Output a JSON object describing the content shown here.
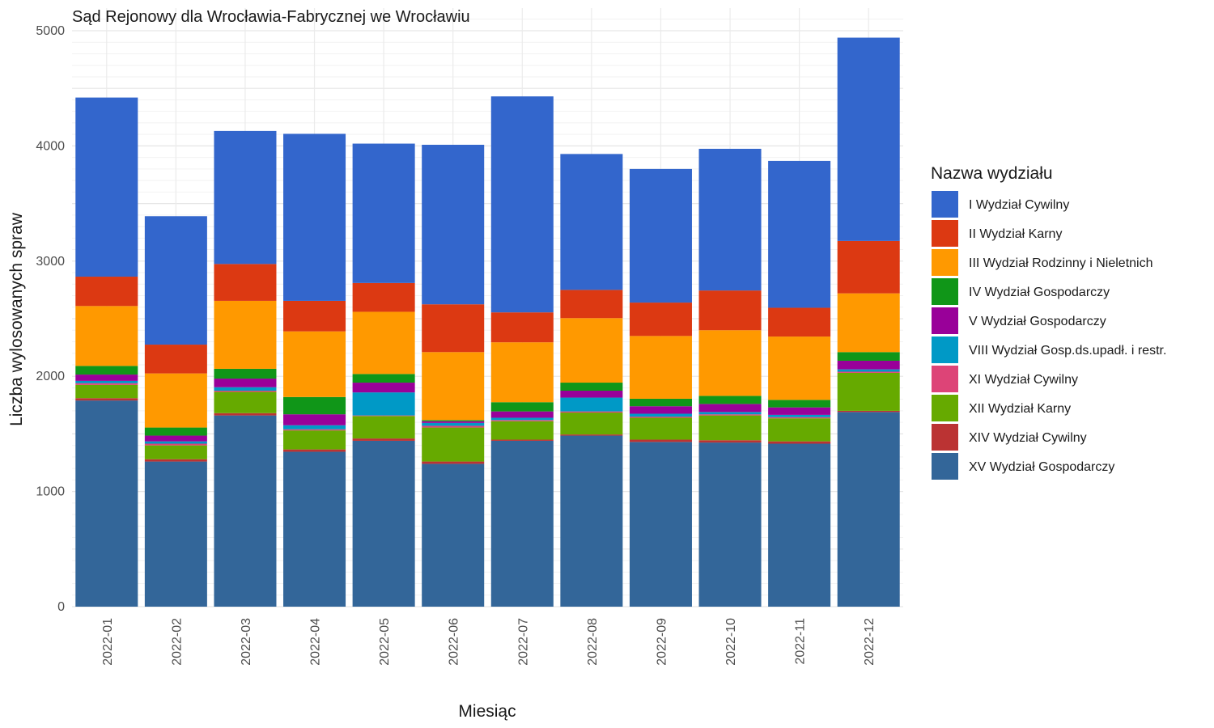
{
  "chart_data": {
    "type": "bar",
    "stacked": true,
    "title": "Sąd Rejonowy dla Wrocławia-Fabrycznej we Wrocławiu",
    "xlabel": "Miesiąc",
    "ylabel": "Liczba wylosowanych spraw",
    "ylim": [
      0,
      5000
    ],
    "yticks": [
      "0",
      "1000",
      "2000",
      "3000",
      "4000",
      "5000"
    ],
    "grid": true,
    "legend_position": "right",
    "legend_title": "Nazwa wydziału",
    "categories": [
      "2022-01",
      "2022-02",
      "2022-03",
      "2022-04",
      "2022-05",
      "2022-06",
      "2022-07",
      "2022-08",
      "2022-09",
      "2022-10",
      "2022-11",
      "2022-12"
    ],
    "series": [
      {
        "name": "XV Wydział Gospodarczy",
        "color": "#336699",
        "values": [
          1790,
          1260,
          1660,
          1345,
          1440,
          1240,
          1440,
          1485,
          1430,
          1425,
          1415,
          1690
        ]
      },
      {
        "name": "XIV Wydział Cywilny",
        "color": "#BB3333",
        "values": [
          20,
          20,
          20,
          20,
          20,
          20,
          10,
          10,
          20,
          20,
          20,
          10
        ]
      },
      {
        "name": "XII Wydział Karny",
        "color": "#66AA00",
        "values": [
          115,
          120,
          185,
          165,
          195,
          295,
          160,
          190,
          190,
          215,
          200,
          330
        ]
      },
      {
        "name": "XI Wydział Cywilny",
        "color": "#DD4477",
        "values": [
          15,
          15,
          10,
          10,
          5,
          15,
          10,
          10,
          10,
          10,
          10,
          10
        ]
      },
      {
        "name": "VIII Wydział Gosp.ds.upadł. i restr.",
        "color": "#0099C6",
        "values": [
          20,
          20,
          30,
          35,
          200,
          25,
          20,
          120,
          25,
          20,
          20,
          20
        ]
      },
      {
        "name": "V Wydział Gospodarczy",
        "color": "#990099",
        "values": [
          55,
          50,
          75,
          95,
          85,
          15,
          55,
          60,
          65,
          70,
          65,
          75
        ]
      },
      {
        "name": "IV Wydział Gospodarczy",
        "color": "#109618",
        "values": [
          75,
          70,
          85,
          150,
          75,
          10,
          80,
          70,
          65,
          70,
          65,
          75
        ]
      },
      {
        "name": "III Wydział Rodzinny i Nieletnich",
        "color": "#FF9900",
        "values": [
          520,
          470,
          590,
          570,
          540,
          590,
          520,
          560,
          545,
          570,
          550,
          510
        ]
      },
      {
        "name": "II Wydział Karny",
        "color": "#DC3912",
        "values": [
          255,
          250,
          320,
          265,
          250,
          415,
          260,
          245,
          290,
          345,
          250,
          455
        ]
      },
      {
        "name": "I Wydział Cywilny",
        "color": "#3366CC",
        "values": [
          1555,
          1115,
          1155,
          1450,
          1210,
          1385,
          1875,
          1180,
          1160,
          1230,
          1275,
          1765
        ]
      }
    ]
  }
}
